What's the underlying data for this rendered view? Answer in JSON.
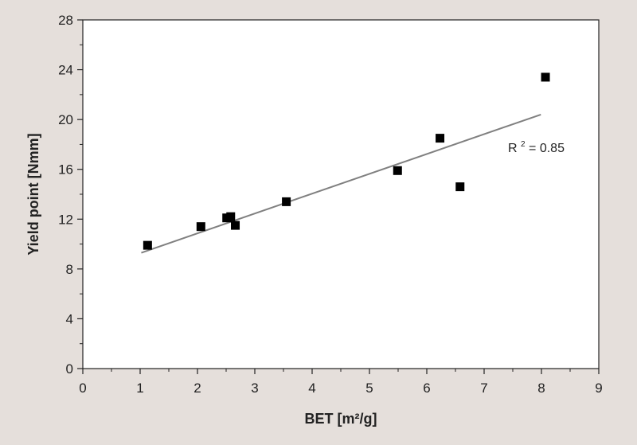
{
  "chart_data": {
    "type": "scatter",
    "xlabel": "BET [m²/g]",
    "ylabel": "Yield point [Nmm]",
    "xlim": [
      0,
      9
    ],
    "ylim": [
      0,
      28
    ],
    "xticks": [
      "0",
      "1",
      "2",
      "3",
      "4",
      "5",
      "6",
      "7",
      "8",
      "9"
    ],
    "yticks": [
      "0",
      "4",
      "8",
      "12",
      "16",
      "20",
      "24",
      "28"
    ],
    "grid": false,
    "points": [
      {
        "x": 1.13,
        "y": 9.9
      },
      {
        "x": 2.06,
        "y": 11.4
      },
      {
        "x": 2.51,
        "y": 12.1
      },
      {
        "x": 2.58,
        "y": 12.2
      },
      {
        "x": 2.66,
        "y": 11.5
      },
      {
        "x": 3.55,
        "y": 13.4
      },
      {
        "x": 5.49,
        "y": 15.9
      },
      {
        "x": 6.23,
        "y": 18.5
      },
      {
        "x": 6.58,
        "y": 14.6
      },
      {
        "x": 8.07,
        "y": 23.4
      }
    ],
    "trendline": {
      "x": [
        1.02,
        7.99
      ],
      "y": [
        9.3,
        20.4
      ]
    },
    "annotation": {
      "label": "R",
      "sup": "2",
      "rest": " = 0.85"
    },
    "colors": {
      "marker": "#000000",
      "trendline": "#808080",
      "background": "#e5dfdb",
      "plot_background": "#ffffff"
    }
  }
}
